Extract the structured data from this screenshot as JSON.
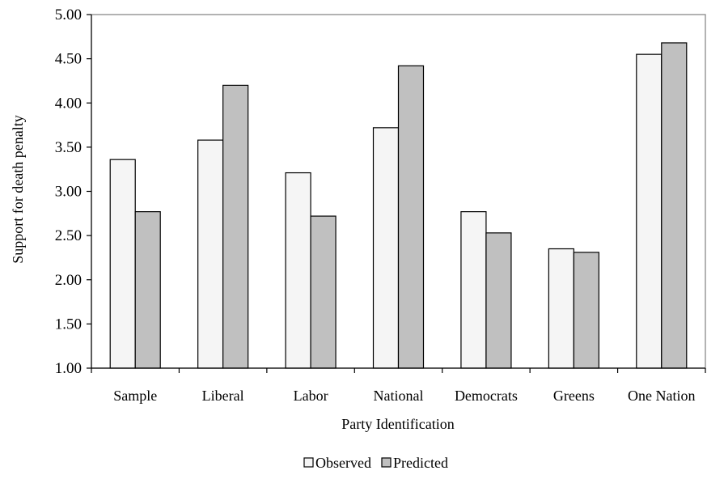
{
  "chart_data": {
    "type": "bar",
    "title": "",
    "xlabel": "Party Identification",
    "ylabel": "Support for death penalty",
    "ylim": [
      1.0,
      5.0
    ],
    "yticks": [
      "1.00",
      "1.50",
      "2.00",
      "2.50",
      "3.00",
      "3.50",
      "4.00",
      "4.50",
      "5.00"
    ],
    "grid": false,
    "legend_position": "bottom",
    "categories": [
      "Sample",
      "Liberal",
      "Labor",
      "National",
      "Democrats",
      "Greens",
      "One Nation"
    ],
    "series": [
      {
        "name": "Observed",
        "color": "#f5f5f5",
        "values": [
          3.36,
          3.58,
          3.21,
          3.72,
          2.77,
          2.35,
          4.55
        ]
      },
      {
        "name": "Predicted",
        "color": "#c0c0c0",
        "values": [
          2.77,
          4.2,
          2.72,
          4.42,
          2.53,
          2.31,
          4.68
        ]
      }
    ]
  }
}
